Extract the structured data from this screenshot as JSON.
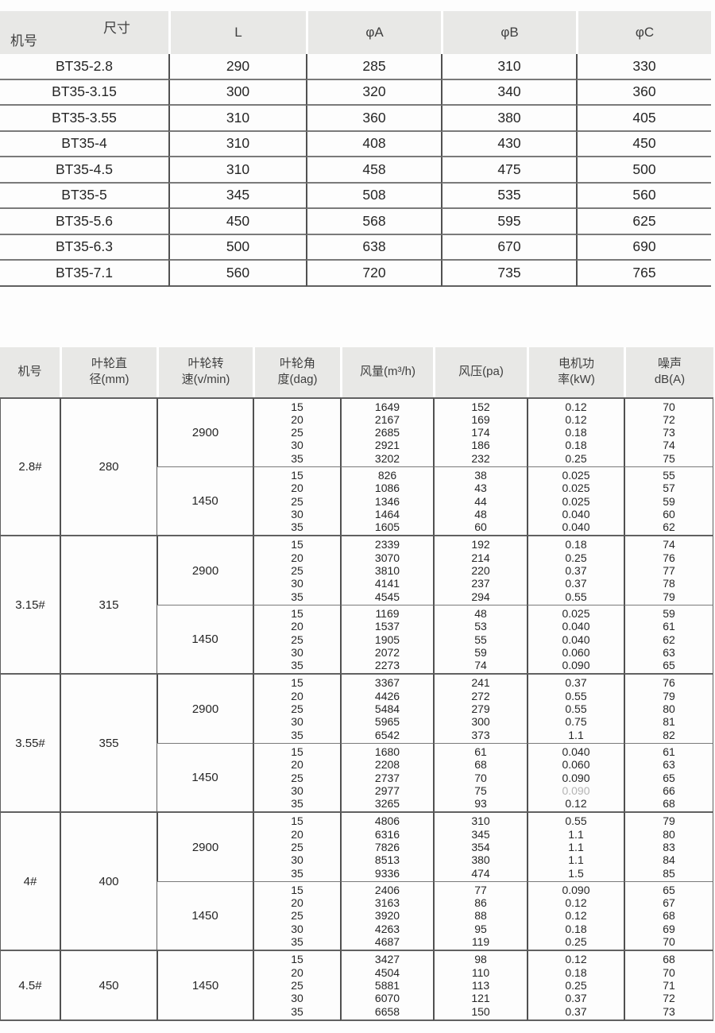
{
  "colors": {
    "header_bg": "#e8e8e6",
    "grid_line": "#7a7a7a",
    "grid_line_strong": "#616161",
    "text": "#262626",
    "muted_value": "#b4b4b4"
  },
  "dimension_table": {
    "corner_top": "尺寸",
    "corner_bottom": "机号",
    "columns": [
      "L",
      "φA",
      "φB",
      "φC"
    ],
    "rows": [
      {
        "model": "BT35-2.8",
        "values": [
          "290",
          "285",
          "310",
          "330"
        ]
      },
      {
        "model": "BT35-3.15",
        "values": [
          "300",
          "320",
          "340",
          "360"
        ]
      },
      {
        "model": "BT35-3.55",
        "values": [
          "310",
          "360",
          "380",
          "405"
        ]
      },
      {
        "model": "BT35-4",
        "values": [
          "310",
          "408",
          "430",
          "450"
        ]
      },
      {
        "model": "BT35-4.5",
        "values": [
          "310",
          "458",
          "475",
          "500"
        ]
      },
      {
        "model": "BT35-5",
        "values": [
          "345",
          "508",
          "535",
          "560"
        ]
      },
      {
        "model": "BT35-5.6",
        "values": [
          "450",
          "568",
          "595",
          "625"
        ]
      },
      {
        "model": "BT35-6.3",
        "values": [
          "500",
          "638",
          "670",
          "690"
        ]
      },
      {
        "model": "BT35-7.1",
        "values": [
          "560",
          "720",
          "735",
          "765"
        ]
      }
    ]
  },
  "performance_table": {
    "headers": [
      "机号",
      "叶轮直\n径(mm)",
      "叶轮转\n速(v/min)",
      "叶轮角\n度(dag)",
      "风量(m³/h)",
      "风压(pa)",
      "电机功\n率(kW)",
      "噪声\ndB(A)"
    ],
    "sections": [
      {
        "model": "2.8#",
        "diameter": "280",
        "blocks": [
          {
            "speed": "2900",
            "angles": [
              "15",
              "20",
              "25",
              "30",
              "35"
            ],
            "flow": [
              "1649",
              "2167",
              "2685",
              "2921",
              "3202"
            ],
            "pressure": [
              "152",
              "169",
              "174",
              "186",
              "232"
            ],
            "power": [
              "0.12",
              "0.12",
              "0.18",
              "0.18",
              "0.25"
            ],
            "noise": [
              "70",
              "72",
              "73",
              "74",
              "75"
            ]
          },
          {
            "speed": "1450",
            "angles": [
              "15",
              "20",
              "25",
              "30",
              "35"
            ],
            "flow": [
              "826",
              "1086",
              "1346",
              "1464",
              "1605"
            ],
            "pressure": [
              "38",
              "43",
              "44",
              "48",
              "60"
            ],
            "power": [
              "0.025",
              "0.025",
              "0.025",
              "0.040",
              "0.040"
            ],
            "noise": [
              "55",
              "57",
              "59",
              "60",
              "62"
            ]
          }
        ]
      },
      {
        "model": "3.15#",
        "diameter": "315",
        "blocks": [
          {
            "speed": "2900",
            "angles": [
              "15",
              "20",
              "25",
              "30",
              "35"
            ],
            "flow": [
              "2339",
              "3070",
              "3810",
              "4141",
              "4545"
            ],
            "pressure": [
              "192",
              "214",
              "220",
              "237",
              "294"
            ],
            "power": [
              "0.18",
              "0.25",
              "0.37",
              "0.37",
              "0.55"
            ],
            "noise": [
              "74",
              "76",
              "77",
              "78",
              "79"
            ]
          },
          {
            "speed": "1450",
            "angles": [
              "15",
              "20",
              "25",
              "30",
              "35"
            ],
            "flow": [
              "1169",
              "1537",
              "1905",
              "2072",
              "2273"
            ],
            "pressure": [
              "48",
              "53",
              "55",
              "59",
              "74"
            ],
            "power": [
              "0.025",
              "0.040",
              "0.040",
              "0.060",
              "0.090"
            ],
            "noise": [
              "59",
              "61",
              "62",
              "63",
              "65"
            ]
          }
        ]
      },
      {
        "model": "3.55#",
        "diameter": "355",
        "blocks": [
          {
            "speed": "2900",
            "angles": [
              "15",
              "20",
              "25",
              "30",
              "35"
            ],
            "flow": [
              "3367",
              "4426",
              "5484",
              "5965",
              "6542"
            ],
            "pressure": [
              "241",
              "272",
              "279",
              "300",
              "373"
            ],
            "power": [
              "0.37",
              "0.55",
              "0.55",
              "0.75",
              "1.1"
            ],
            "noise": [
              "76",
              "79",
              "80",
              "81",
              "82"
            ]
          },
          {
            "speed": "1450",
            "angles": [
              "15",
              "20",
              "25",
              "30",
              "35"
            ],
            "flow": [
              "1680",
              "2208",
              "2737",
              "2977",
              "3265"
            ],
            "pressure": [
              "61",
              "68",
              "70",
              "75",
              "93"
            ],
            "power": [
              "0.040",
              "0.060",
              "0.090",
              "0.090",
              "0.12"
            ],
            "power_muted_index": 3,
            "noise": [
              "61",
              "63",
              "65",
              "66",
              "68"
            ]
          }
        ]
      },
      {
        "model": "4#",
        "diameter": "400",
        "blocks": [
          {
            "speed": "2900",
            "angles": [
              "15",
              "20",
              "25",
              "30",
              "35"
            ],
            "flow": [
              "4806",
              "6316",
              "7826",
              "8513",
              "9336"
            ],
            "pressure": [
              "310",
              "345",
              "354",
              "380",
              "474"
            ],
            "power": [
              "0.55",
              "1.1",
              "1.1",
              "1.1",
              "1.5"
            ],
            "noise": [
              "79",
              "80",
              "83",
              "84",
              "85"
            ]
          },
          {
            "speed": "1450",
            "angles": [
              "15",
              "20",
              "25",
              "30",
              "35"
            ],
            "flow": [
              "2406",
              "3163",
              "3920",
              "4263",
              "4687"
            ],
            "pressure": [
              "77",
              "86",
              "88",
              "95",
              "119"
            ],
            "power": [
              "0.090",
              "0.12",
              "0.12",
              "0.18",
              "0.25"
            ],
            "noise": [
              "65",
              "67",
              "68",
              "69",
              "70"
            ]
          }
        ]
      },
      {
        "model": "4.5#",
        "diameter": "450",
        "blocks": [
          {
            "speed": "1450",
            "angles": [
              "15",
              "20",
              "25",
              "30",
              "35"
            ],
            "flow": [
              "3427",
              "4504",
              "5881",
              "6070",
              "6658"
            ],
            "pressure": [
              "98",
              "110",
              "113",
              "121",
              "150"
            ],
            "power": [
              "0.12",
              "0.18",
              "0.25",
              "0.37",
              "0.37"
            ],
            "noise": [
              "68",
              "70",
              "71",
              "72",
              "73"
            ]
          }
        ]
      }
    ]
  }
}
